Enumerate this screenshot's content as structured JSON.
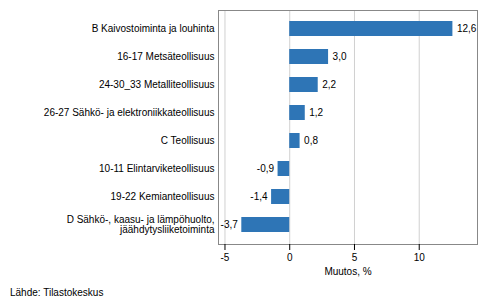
{
  "chart_data": {
    "type": "bar",
    "orientation": "horizontal",
    "categories": [
      "D Sähkö-, kaasu- ja lämpöhuolto,\njäähdytysliiketoiminta",
      "19-22 Kemianteollisuus",
      "10-11 Elintarviketeollisuus",
      "C Teollisuus",
      "26-27 Sähkö- ja elektroniikkateollisuus",
      "24-30_33 Metalliteollisuus",
      "16-17 Metsäteollisuus",
      "B Kaivostoiminta ja louhinta"
    ],
    "values": [
      -3.7,
      -1.4,
      -0.9,
      0.8,
      1.2,
      2.2,
      3.0,
      12.6
    ],
    "value_labels": [
      "-3,7",
      "-1,4",
      "-0,9",
      "0,8",
      "1,2",
      "2,2",
      "3,0",
      "12,6"
    ],
    "data_labels": true,
    "color": "#2E75B6",
    "xlabel": "Muutos, %",
    "xlim": [
      -5.5,
      14.5
    ],
    "xticks": [
      -5,
      0,
      5,
      10
    ],
    "grid": true,
    "source": "Lähde: Tilastokeskus"
  }
}
